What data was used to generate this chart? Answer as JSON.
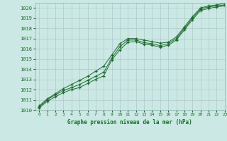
{
  "title": "Graphe pression niveau de la mer (hPa)",
  "bg_color": "#cce8e4",
  "grid_color": "#aacccc",
  "line_color": "#1a6b2a",
  "marker_color": "#1a6b2a",
  "xlim": [
    -0.5,
    23
  ],
  "ylim": [
    1010,
    1020.5
  ],
  "xticks": [
    0,
    1,
    2,
    3,
    4,
    5,
    6,
    7,
    8,
    9,
    10,
    11,
    12,
    13,
    14,
    15,
    16,
    17,
    18,
    19,
    20,
    21,
    22,
    23
  ],
  "yticks": [
    1010,
    1011,
    1012,
    1013,
    1014,
    1015,
    1016,
    1017,
    1018,
    1019,
    1020
  ],
  "hours": [
    0,
    1,
    2,
    3,
    4,
    5,
    6,
    7,
    8,
    9,
    10,
    11,
    12,
    13,
    14,
    15,
    16,
    17,
    18,
    19,
    20,
    21,
    22,
    23
  ],
  "series_mid": [
    1010.3,
    1011.0,
    1011.5,
    1011.9,
    1012.2,
    1012.5,
    1012.9,
    1013.3,
    1013.7,
    1015.1,
    1016.2,
    1016.85,
    1016.85,
    1016.6,
    1016.5,
    1016.3,
    1016.5,
    1017.0,
    1018.0,
    1019.0,
    1019.9,
    1020.1,
    1020.2,
    1020.3
  ],
  "series_high": [
    1010.4,
    1011.1,
    1011.6,
    1012.1,
    1012.5,
    1012.9,
    1013.3,
    1013.8,
    1014.3,
    1015.4,
    1016.5,
    1017.0,
    1017.0,
    1016.85,
    1016.7,
    1016.55,
    1016.65,
    1017.15,
    1018.15,
    1019.15,
    1020.0,
    1020.2,
    1020.3,
    1020.45
  ],
  "series_low": [
    1010.2,
    1010.85,
    1011.3,
    1011.7,
    1012.0,
    1012.2,
    1012.6,
    1013.0,
    1013.35,
    1014.9,
    1015.9,
    1016.65,
    1016.7,
    1016.45,
    1016.35,
    1016.15,
    1016.35,
    1016.85,
    1017.85,
    1018.85,
    1019.75,
    1019.95,
    1020.1,
    1020.2
  ]
}
